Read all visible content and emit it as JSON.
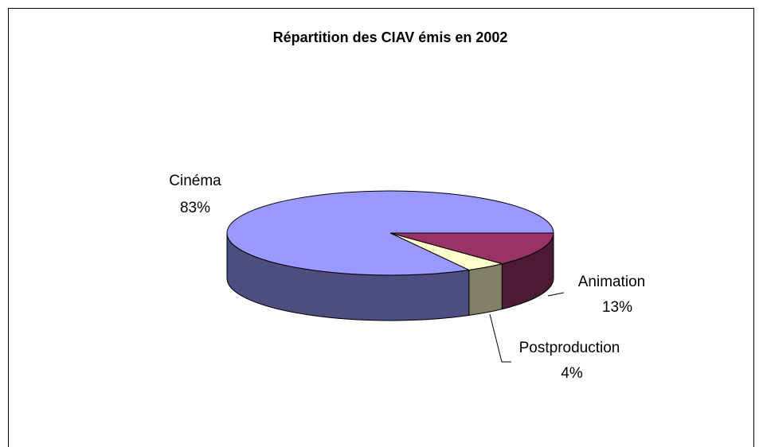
{
  "chart_data": {
    "type": "pie3d",
    "title": "Répartition des CIAV émis en 2002",
    "categories": [
      "Animation",
      "Postproduction",
      "Cinéma"
    ],
    "values": [
      13,
      4,
      83
    ],
    "value_labels": [
      "13%",
      "4%",
      "83%"
    ],
    "colors": [
      "#993366",
      "#ffffcc",
      "#9999ff"
    ]
  }
}
